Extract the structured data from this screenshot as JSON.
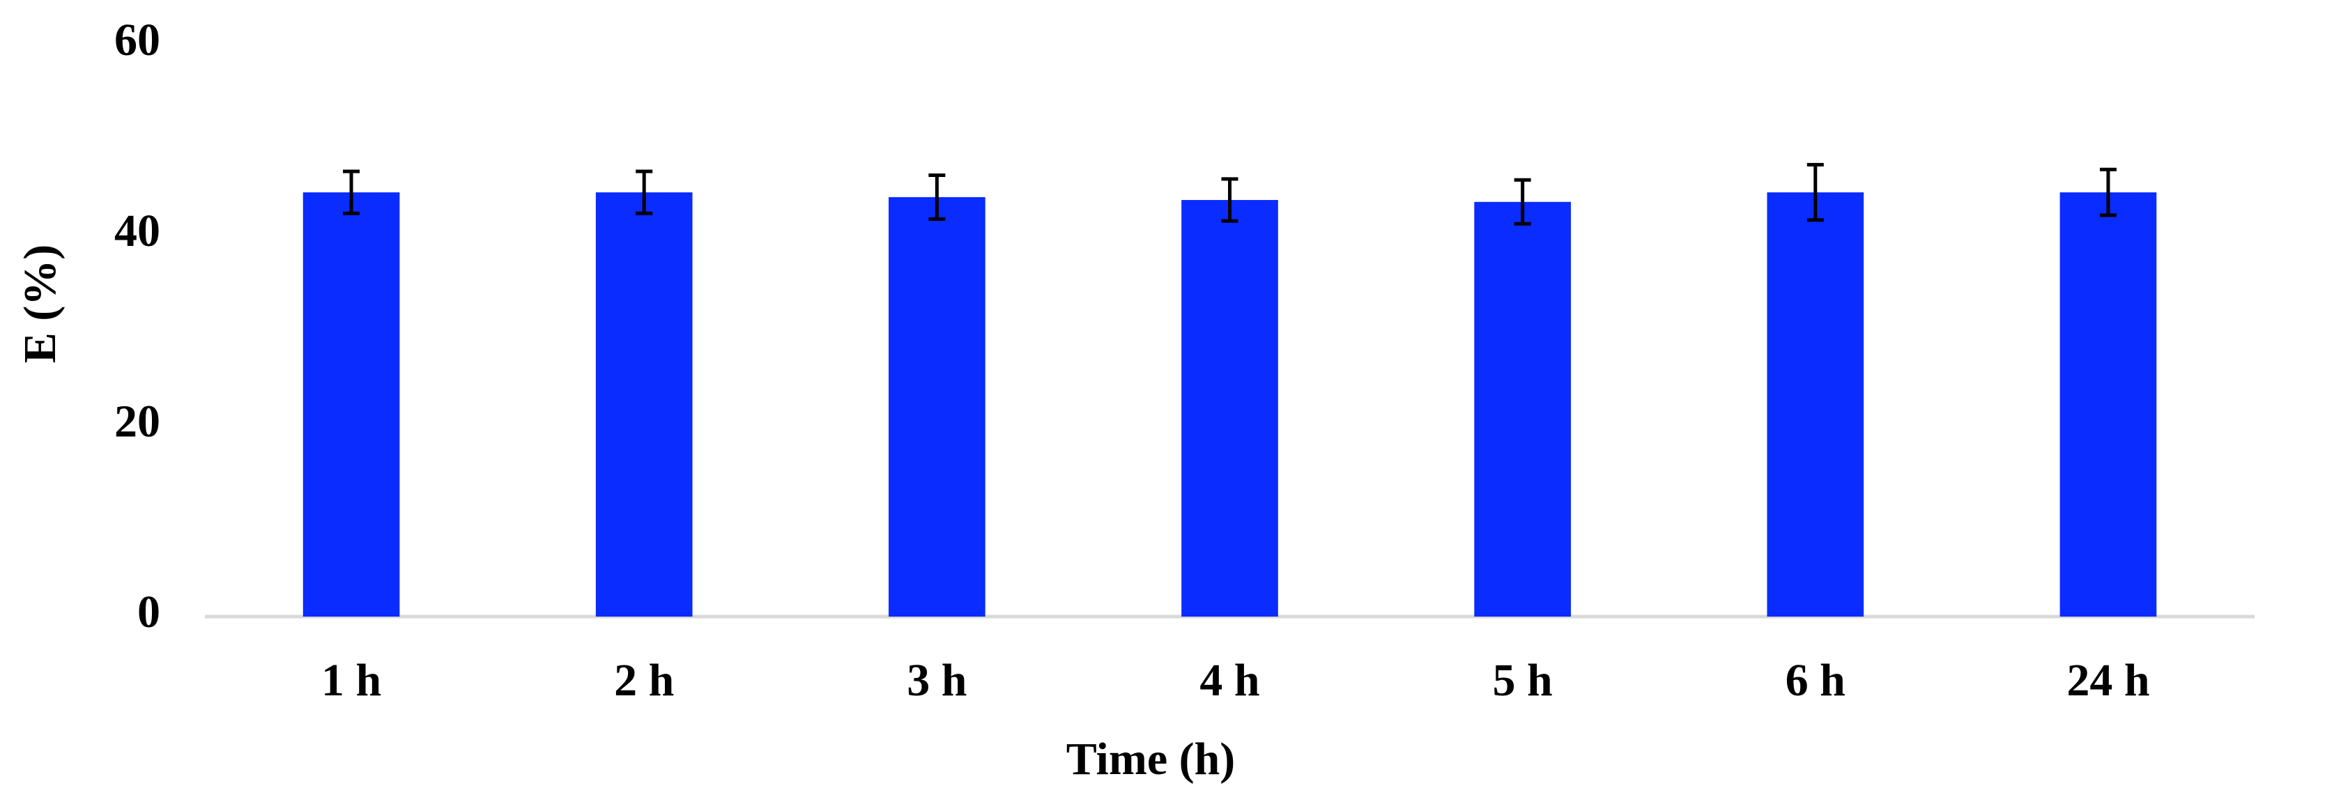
{
  "chart_data": {
    "type": "bar",
    "x_label": "Time (h)",
    "y_label": "E (%)",
    "categories": [
      "1 h",
      "2 h",
      "3 h",
      "4 h",
      "5 h",
      "6 h",
      "24 h"
    ],
    "values": [
      44.5,
      44.5,
      44.0,
      43.7,
      43.5,
      44.5,
      44.5
    ],
    "errors": [
      2.2,
      2.2,
      2.3,
      2.2,
      2.3,
      2.9,
      2.4
    ],
    "color": "#0a2cff",
    "ylim": [
      0,
      60
    ],
    "yticks": [
      0,
      20,
      40,
      60
    ],
    "grid": false
  }
}
